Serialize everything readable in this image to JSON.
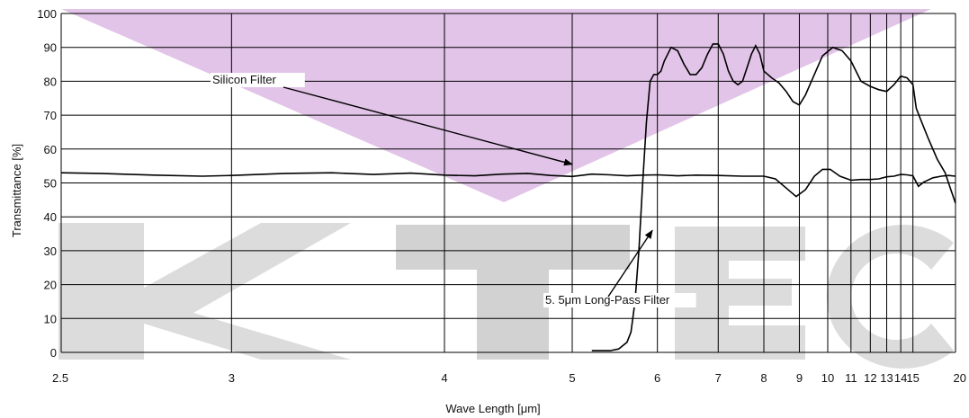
{
  "chart_data": {
    "type": "line",
    "title": "",
    "xlabel": "Wave Length [μm]",
    "ylabel": "Transmittance [%]",
    "xscale": "reciprocal",
    "xlim": [
      2.5,
      20
    ],
    "ylim": [
      0,
      100
    ],
    "grid": true,
    "x_ticks": [
      {
        "value": 2.5,
        "label": "2.5"
      },
      {
        "value": 3,
        "label": "3"
      },
      {
        "value": 4,
        "label": "4"
      },
      {
        "value": 5,
        "label": "5"
      },
      {
        "value": 6,
        "label": "6"
      },
      {
        "value": 7,
        "label": "7"
      },
      {
        "value": 8,
        "label": "8"
      },
      {
        "value": 9,
        "label": "9"
      },
      {
        "value": 10,
        "label": "10"
      },
      {
        "value": 11,
        "label": "11"
      },
      {
        "value": 12,
        "label": "12"
      },
      {
        "value": 13,
        "label": "13"
      },
      {
        "value": 14,
        "label": "14"
      },
      {
        "value": 15,
        "label": "15"
      },
      {
        "value": 20,
        "label": "20"
      }
    ],
    "y_ticks": [
      {
        "value": 0,
        "label": "0"
      },
      {
        "value": 10,
        "label": "10"
      },
      {
        "value": 20,
        "label": "20"
      },
      {
        "value": 30,
        "label": "30"
      },
      {
        "value": 40,
        "label": "40"
      },
      {
        "value": 50,
        "label": "50"
      },
      {
        "value": 60,
        "label": "60"
      },
      {
        "value": 70,
        "label": "70"
      },
      {
        "value": 80,
        "label": "80"
      },
      {
        "value": 90,
        "label": "90"
      },
      {
        "value": 100,
        "label": "100"
      }
    ],
    "series": [
      {
        "name": "Silicon Filter",
        "color": "#000000",
        "points": [
          [
            2.5,
            53
          ],
          [
            2.6,
            52.8
          ],
          [
            2.75,
            52.3
          ],
          [
            2.9,
            52
          ],
          [
            3.0,
            52.2
          ],
          [
            3.2,
            52.8
          ],
          [
            3.4,
            53
          ],
          [
            3.6,
            52.5
          ],
          [
            3.8,
            52.9
          ],
          [
            4.0,
            52.3
          ],
          [
            4.2,
            52.1
          ],
          [
            4.4,
            52.6
          ],
          [
            4.6,
            52.8
          ],
          [
            4.8,
            52.2
          ],
          [
            5.0,
            51.9
          ],
          [
            5.2,
            52.6
          ],
          [
            5.4,
            52.4
          ],
          [
            5.6,
            52.1
          ],
          [
            5.8,
            52.3
          ],
          [
            6.0,
            52.4
          ],
          [
            6.3,
            52.1
          ],
          [
            6.6,
            52.3
          ],
          [
            7.0,
            52.2
          ],
          [
            7.5,
            52
          ],
          [
            8.0,
            52
          ],
          [
            8.3,
            51.2
          ],
          [
            8.6,
            48.5
          ],
          [
            8.9,
            46
          ],
          [
            9.2,
            48
          ],
          [
            9.5,
            52
          ],
          [
            9.8,
            54
          ],
          [
            10.1,
            54
          ],
          [
            10.5,
            52
          ],
          [
            11.0,
            50.8
          ],
          [
            11.5,
            51
          ],
          [
            12.0,
            51
          ],
          [
            12.5,
            51.2
          ],
          [
            13.0,
            51.8
          ],
          [
            13.5,
            52
          ],
          [
            14.0,
            52.5
          ],
          [
            14.5,
            52.4
          ],
          [
            15.0,
            52.1
          ],
          [
            15.5,
            49
          ],
          [
            16.0,
            50.2
          ],
          [
            17.0,
            51.5
          ],
          [
            18.0,
            52
          ],
          [
            19.0,
            52.2
          ],
          [
            20.0,
            52
          ]
        ]
      },
      {
        "name": "5. 5μm Long-Pass Filter",
        "color": "#000000",
        "points": [
          [
            5.2,
            0.5
          ],
          [
            5.4,
            0.5
          ],
          [
            5.5,
            1
          ],
          [
            5.6,
            3
          ],
          [
            5.65,
            6
          ],
          [
            5.7,
            15
          ],
          [
            5.75,
            30
          ],
          [
            5.8,
            50
          ],
          [
            5.85,
            68
          ],
          [
            5.9,
            80
          ],
          [
            5.95,
            82
          ],
          [
            6.0,
            82
          ],
          [
            6.05,
            83
          ],
          [
            6.1,
            86
          ],
          [
            6.2,
            90
          ],
          [
            6.3,
            89
          ],
          [
            6.4,
            85
          ],
          [
            6.5,
            82
          ],
          [
            6.6,
            82
          ],
          [
            6.7,
            84
          ],
          [
            6.8,
            88
          ],
          [
            6.9,
            91
          ],
          [
            7.0,
            91
          ],
          [
            7.1,
            88
          ],
          [
            7.2,
            83
          ],
          [
            7.3,
            80
          ],
          [
            7.4,
            79
          ],
          [
            7.5,
            80
          ],
          [
            7.6,
            84
          ],
          [
            7.7,
            88
          ],
          [
            7.8,
            90.5
          ],
          [
            7.9,
            88
          ],
          [
            8.0,
            83
          ],
          [
            8.2,
            81
          ],
          [
            8.4,
            79.5
          ],
          [
            8.6,
            77
          ],
          [
            8.8,
            74
          ],
          [
            9.0,
            73
          ],
          [
            9.2,
            76
          ],
          [
            9.5,
            82
          ],
          [
            9.8,
            87.5
          ],
          [
            10.2,
            90
          ],
          [
            10.6,
            89
          ],
          [
            11.0,
            86
          ],
          [
            11.5,
            80
          ],
          [
            12.0,
            78.5
          ],
          [
            12.5,
            77.5
          ],
          [
            13.0,
            77
          ],
          [
            13.5,
            79
          ],
          [
            14.0,
            81.5
          ],
          [
            14.5,
            81
          ],
          [
            15.0,
            79
          ],
          [
            15.3,
            72
          ],
          [
            15.8,
            68
          ],
          [
            16.5,
            63
          ],
          [
            17.5,
            57
          ],
          [
            18.5,
            53
          ],
          [
            19.3,
            48
          ],
          [
            20.0,
            44
          ]
        ]
      }
    ],
    "annotations": [
      {
        "id": "silicon",
        "text": "Silicon Filter",
        "target": [
          5.0,
          55.5
        ]
      },
      {
        "id": "longpass",
        "text": "5. 5μm Long-Pass Filter",
        "target": [
          5.93,
          36
        ]
      }
    ]
  }
}
